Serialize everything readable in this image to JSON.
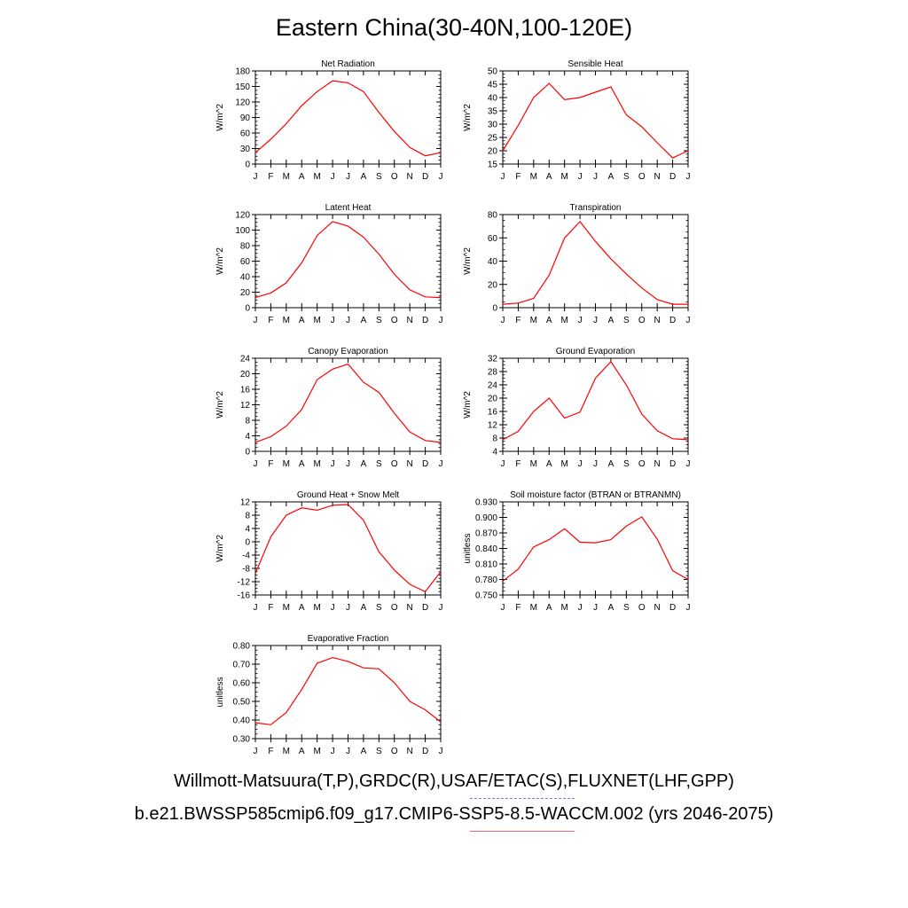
{
  "page": {
    "title": "Eastern China(30-40N,100-120E)",
    "footer_obs": "Willmott-Matsuura(T,P),GRDC(R),USAF/ETAC(S),FLUXNET(LHF,GPP)",
    "footer_model": "b.e21.BWSSP585cmip6.f09_g17.CMIP6-SSP5-8.5-WACCM.002 (yrs 2046-2075)",
    "obs_line_color": "#7777ee",
    "model_line_color": "#ff6666"
  },
  "chart_data": [
    {
      "type": "line",
      "title": "Net Radiation",
      "ylabel": "W/m^2",
      "categories": [
        "J",
        "F",
        "M",
        "A",
        "M",
        "J",
        "J",
        "A",
        "S",
        "O",
        "N",
        "D",
        "J"
      ],
      "ylim": [
        0,
        180
      ],
      "yticks": [
        "0",
        "30",
        "60",
        "90",
        "120",
        "150",
        "180"
      ],
      "series": [
        {
          "color": "#ff0000",
          "values": [
            22,
            48,
            78,
            113,
            140,
            161,
            157,
            140,
            100,
            63,
            32,
            16,
            22
          ]
        }
      ]
    },
    {
      "type": "line",
      "title": "Sensible Heat",
      "ylabel": "W/m^2",
      "categories": [
        "J",
        "F",
        "M",
        "A",
        "M",
        "J",
        "J",
        "A",
        "S",
        "O",
        "N",
        "D",
        "J"
      ],
      "ylim": [
        15,
        50
      ],
      "yticks": [
        "15",
        "20",
        "25",
        "30",
        "35",
        "40",
        "45",
        "50"
      ],
      "series": [
        {
          "color": "#ff0000",
          "values": [
            20,
            29.5,
            40,
            45.3,
            39.2,
            40,
            42,
            44,
            33.5,
            29,
            23,
            17.3,
            20
          ]
        }
      ]
    },
    {
      "type": "line",
      "title": "Latent Heat",
      "ylabel": "W/m^2",
      "categories": [
        "J",
        "F",
        "M",
        "A",
        "M",
        "J",
        "J",
        "A",
        "S",
        "O",
        "N",
        "D",
        "J"
      ],
      "ylim": [
        0,
        120
      ],
      "yticks": [
        "0",
        "20",
        "40",
        "60",
        "80",
        "100",
        "120"
      ],
      "series": [
        {
          "color": "#ff0000",
          "values": [
            13,
            19,
            32,
            58,
            93,
            111,
            105,
            91,
            69,
            43,
            23,
            14,
            13
          ]
        }
      ]
    },
    {
      "type": "line",
      "title": "Transpiration",
      "ylabel": "W/m^2",
      "categories": [
        "J",
        "F",
        "M",
        "A",
        "M",
        "J",
        "J",
        "A",
        "S",
        "O",
        "N",
        "D",
        "J"
      ],
      "ylim": [
        0,
        80
      ],
      "yticks": [
        "0",
        "20",
        "40",
        "60",
        "80"
      ],
      "series": [
        {
          "color": "#ff0000",
          "values": [
            3,
            4,
            8,
            28,
            60,
            74,
            57,
            42,
            29,
            17,
            7,
            3,
            3
          ]
        }
      ]
    },
    {
      "type": "line",
      "title": "Canopy Evaporation",
      "ylabel": "W/m^2",
      "categories": [
        "J",
        "F",
        "M",
        "A",
        "M",
        "J",
        "J",
        "A",
        "S",
        "O",
        "N",
        "D",
        "J"
      ],
      "ylim": [
        0,
        24
      ],
      "yticks": [
        "0",
        "4",
        "8",
        "12",
        "16",
        "20",
        "24"
      ],
      "series": [
        {
          "color": "#ff0000",
          "values": [
            2.3,
            3.8,
            6.5,
            10.8,
            18.5,
            21.2,
            22.5,
            17.8,
            15.2,
            9.8,
            5,
            2.8,
            2.3
          ]
        }
      ]
    },
    {
      "type": "line",
      "title": "Ground Evaporation",
      "ylabel": "W/m^2",
      "categories": [
        "J",
        "F",
        "M",
        "A",
        "M",
        "J",
        "J",
        "A",
        "S",
        "O",
        "N",
        "D",
        "J"
      ],
      "ylim": [
        4,
        32
      ],
      "yticks": [
        "4",
        "8",
        "12",
        "16",
        "20",
        "24",
        "28",
        "32"
      ],
      "series": [
        {
          "color": "#ff0000",
          "values": [
            7.5,
            10,
            16,
            20,
            14,
            15.8,
            26,
            31,
            24,
            15.2,
            10.2,
            7.8,
            7.5
          ]
        }
      ]
    },
    {
      "type": "line",
      "title": "Ground Heat + Snow Melt",
      "ylabel": "W/m^2",
      "categories": [
        "J",
        "F",
        "M",
        "A",
        "M",
        "J",
        "J",
        "A",
        "S",
        "O",
        "N",
        "D",
        "J"
      ],
      "ylim": [
        -16,
        12
      ],
      "yticks": [
        "-16",
        "-12",
        "-8",
        "-4",
        "0",
        "4",
        "8",
        "12"
      ],
      "series": [
        {
          "color": "#ff0000",
          "values": [
            -9.5,
            1.5,
            8,
            10.2,
            9.5,
            11,
            11.2,
            6.5,
            -3,
            -8.5,
            -12.8,
            -15,
            -9
          ]
        }
      ]
    },
    {
      "type": "line",
      "title": "Soil moisture factor (BTRAN or BTRANMN)",
      "ylabel": "unitless",
      "categories": [
        "J",
        "F",
        "M",
        "A",
        "M",
        "J",
        "J",
        "A",
        "S",
        "O",
        "N",
        "D",
        "J"
      ],
      "ylim": [
        0.75,
        0.93
      ],
      "yticks": [
        "0.750",
        "0.780",
        "0.810",
        "0.840",
        "0.870",
        "0.900",
        "0.930"
      ],
      "series": [
        {
          "color": "#ff0000",
          "values": [
            0.777,
            0.8,
            0.843,
            0.857,
            0.878,
            0.852,
            0.851,
            0.857,
            0.883,
            0.901,
            0.858,
            0.797,
            0.78
          ]
        }
      ]
    },
    {
      "type": "line",
      "title": "Evaporative Fraction",
      "ylabel": "unitless",
      "categories": [
        "J",
        "F",
        "M",
        "A",
        "M",
        "J",
        "J",
        "A",
        "S",
        "O",
        "N",
        "D",
        "J"
      ],
      "ylim": [
        0.3,
        0.8
      ],
      "yticks": [
        "0.30",
        "0.40",
        "0.50",
        "0.60",
        "0.70",
        "0.80"
      ],
      "series": [
        {
          "color": "#ff0000",
          "values": [
            0.385,
            0.375,
            0.44,
            0.565,
            0.705,
            0.735,
            0.715,
            0.68,
            0.675,
            0.6,
            0.5,
            0.455,
            0.39
          ]
        }
      ]
    }
  ]
}
